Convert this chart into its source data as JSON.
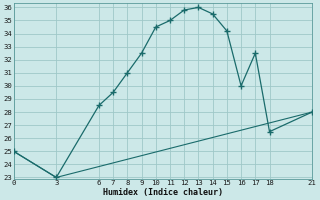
{
  "xlabel": "Humidex (Indice chaleur)",
  "bg_color": "#cce8e8",
  "grid_color": "#9fc8c8",
  "line_color": "#1a6b6b",
  "curve1_x": [
    0,
    3,
    6,
    7,
    8,
    9,
    10,
    11,
    12,
    13,
    14,
    15,
    16,
    17,
    18,
    21
  ],
  "curve1_y": [
    25.0,
    23.0,
    28.5,
    29.5,
    31.0,
    32.5,
    34.5,
    35.0,
    35.8,
    36.0,
    35.5,
    34.2,
    30.0,
    32.5,
    26.5,
    28.0
  ],
  "curve2_x": [
    0,
    3,
    21
  ],
  "curve2_y": [
    25.0,
    23.0,
    28.0
  ],
  "xlim": [
    0,
    21
  ],
  "ylim": [
    23,
    36
  ],
  "xticks": [
    0,
    3,
    6,
    7,
    8,
    9,
    10,
    11,
    12,
    13,
    14,
    15,
    16,
    17,
    18,
    21
  ],
  "yticks": [
    23,
    24,
    25,
    26,
    27,
    28,
    29,
    30,
    31,
    32,
    33,
    34,
    35,
    36
  ]
}
